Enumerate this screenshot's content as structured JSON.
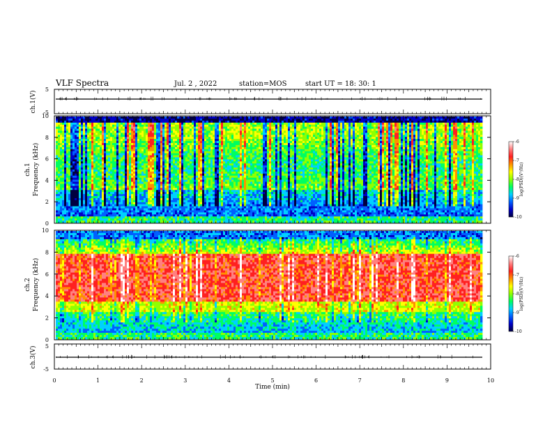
{
  "header": {
    "title": "VLF Spectra",
    "date": "Jul. 2 , 2022",
    "station": "station=MOS",
    "start": "start UT =  18: 30: 1"
  },
  "chart_data": [
    {
      "type": "line",
      "name": "waveform-ch1",
      "ylabel": "ch.1(V)",
      "ylim": [
        -5,
        5
      ],
      "yticks": [
        "5",
        "-5"
      ],
      "xlim": [
        0,
        10
      ],
      "baseline": -1
    },
    {
      "type": "heatmap",
      "name": "spectrogram-ch1",
      "ylabel": "ch.1\nFrequency (kHz)",
      "ylabel_lines": [
        "ch.1",
        "Frequency (kHz)"
      ],
      "ylim": [
        0,
        10
      ],
      "yticks": [
        "0",
        "2",
        "4",
        "6",
        "8",
        "10"
      ],
      "xlim": [
        0,
        10
      ],
      "colorbar": {
        "label": "log(PSD)(V²/Hz)",
        "ticks": [
          "-6",
          "-7",
          "-8",
          "-9",
          "-10"
        ],
        "range": [
          -10,
          -6
        ]
      }
    },
    {
      "type": "heatmap",
      "name": "spectrogram-ch2",
      "ylabel": "ch.2\nFrequency (kHz)",
      "ylabel_lines": [
        "ch.2",
        "Frequency (kHz)"
      ],
      "ylim": [
        0,
        10
      ],
      "yticks": [
        "0",
        "2",
        "4",
        "6",
        "8",
        "10"
      ],
      "xlim": [
        0,
        10
      ],
      "colorbar": {
        "label": "log(PSD)(V²/Hz)",
        "ticks": [
          "-6",
          "-7",
          "-8",
          "-9",
          "-10"
        ],
        "range": [
          -10,
          -6
        ]
      }
    },
    {
      "type": "line",
      "name": "waveform-ch3",
      "ylabel": "ch.3(V)",
      "ylim": [
        -5,
        5
      ],
      "yticks": [
        "5",
        "-5"
      ],
      "xlim": [
        0,
        10
      ],
      "baseline": -1
    }
  ],
  "xaxis": {
    "label": "Time (min)",
    "ticks": [
      "0",
      "1",
      "2",
      "3",
      "4",
      "5",
      "6",
      "7",
      "8",
      "9",
      "10"
    ],
    "range": [
      0,
      10
    ]
  },
  "colors": {
    "cmap": [
      "#000040",
      "#0000c8",
      "#0060ff",
      "#00d0ff",
      "#00ff60",
      "#90ff00",
      "#ffff00",
      "#ff9000",
      "#ff2020",
      "#ff8080",
      "#ffffff"
    ]
  }
}
